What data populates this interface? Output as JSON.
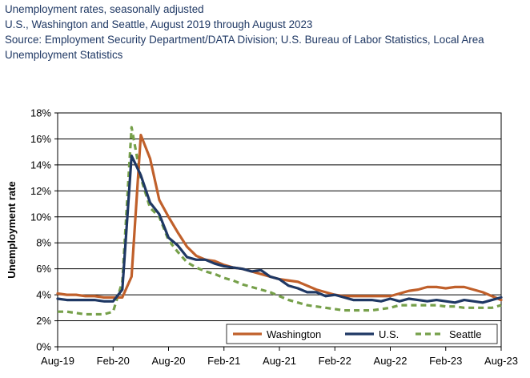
{
  "header": {
    "line1": "Unemployment rates, seasonally adjusted",
    "line2": "U.S., Washington and Seattle, August 2019 through August 2023",
    "line3": "Source: Employment Security Department/DATA Division; U.S. Bureau of Labor Statistics, Local Area Unemployment Statistics"
  },
  "chart_data": {
    "type": "line",
    "title": "Unemployment rates, seasonally adjusted",
    "xlabel": "",
    "ylabel": "Unemployment rate",
    "ylim": [
      0,
      18
    ],
    "yticks": [
      "0%",
      "2%",
      "4%",
      "6%",
      "8%",
      "10%",
      "12%",
      "14%",
      "16%",
      "18%"
    ],
    "xticks": [
      "Aug-19",
      "Feb-20",
      "Aug-20",
      "Feb-21",
      "Aug-21",
      "Feb-22",
      "Aug-22",
      "Feb-23",
      "Aug-23"
    ],
    "legend_position": "bottom-right",
    "grid": "horizontal",
    "series": [
      {
        "name": "Washington",
        "color": "#c0602b",
        "style": "solid",
        "values": [
          4.1,
          4.0,
          4.0,
          3.9,
          3.9,
          3.8,
          3.8,
          3.8,
          5.4,
          16.3,
          14.5,
          11.3,
          10.0,
          8.8,
          7.7,
          7.0,
          6.7,
          6.6,
          6.3,
          6.1,
          6.0,
          5.8,
          5.6,
          5.4,
          5.2,
          5.1,
          5.0,
          4.7,
          4.4,
          4.2,
          4.0,
          3.9,
          3.9,
          3.9,
          3.9,
          3.9,
          3.9,
          4.1,
          4.3,
          4.4,
          4.6,
          4.6,
          4.5,
          4.6,
          4.6,
          4.4,
          4.2,
          3.9,
          3.6
        ]
      },
      {
        "name": "U.S.",
        "color": "#1f3864",
        "style": "solid",
        "values": [
          3.7,
          3.6,
          3.6,
          3.6,
          3.6,
          3.5,
          3.5,
          4.4,
          14.7,
          13.2,
          11.1,
          10.2,
          8.4,
          7.8,
          6.9,
          6.7,
          6.7,
          6.4,
          6.2,
          6.1,
          6.0,
          5.8,
          5.9,
          5.4,
          5.2,
          4.7,
          4.5,
          4.2,
          4.2,
          3.9,
          4.0,
          3.8,
          3.6,
          3.6,
          3.6,
          3.5,
          3.7,
          3.5,
          3.7,
          3.6,
          3.5,
          3.6,
          3.5,
          3.4,
          3.6,
          3.5,
          3.4,
          3.6,
          3.8
        ]
      },
      {
        "name": "Seattle",
        "color": "#76a04a",
        "style": "dashed",
        "values": [
          2.7,
          2.7,
          2.6,
          2.5,
          2.5,
          2.5,
          2.7,
          5.0,
          16.9,
          13.0,
          10.7,
          10.0,
          8.2,
          7.3,
          6.5,
          6.1,
          5.8,
          5.6,
          5.3,
          5.1,
          4.8,
          4.6,
          4.4,
          4.2,
          3.9,
          3.6,
          3.4,
          3.2,
          3.1,
          3.0,
          2.9,
          2.8,
          2.8,
          2.8,
          2.8,
          2.9,
          3.0,
          3.2,
          3.2,
          3.2,
          3.2,
          3.2,
          3.1,
          3.1,
          3.0,
          3.0,
          3.0,
          3.0,
          3.2
        ]
      }
    ]
  }
}
